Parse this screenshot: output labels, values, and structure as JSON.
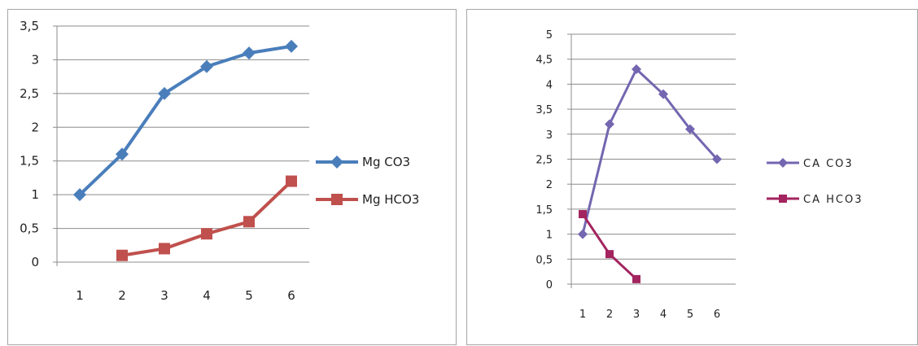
{
  "chart_data": [
    {
      "type": "line",
      "x": [
        "1",
        "2",
        "3",
        "4",
        "5",
        "6"
      ],
      "ylim": [
        0,
        3.5
      ],
      "y_ticks": [
        "0",
        "0,5",
        "1",
        "1,5",
        "2",
        "2,5",
        "3",
        "3,5"
      ],
      "grid": true,
      "legend_position": "right",
      "series": [
        {
          "name": "Mg CO3",
          "color": "#4a7ebb",
          "marker": "diamond",
          "values": [
            1.0,
            1.6,
            2.5,
            2.9,
            3.1,
            3.2
          ]
        },
        {
          "name": "Mg HCO3",
          "color": "#c0504d",
          "marker": "square",
          "values": [
            null,
            0.1,
            0.2,
            0.42,
            0.6,
            1.2
          ]
        }
      ]
    },
    {
      "type": "line",
      "x": [
        "1",
        "2",
        "3",
        "4",
        "5",
        "6"
      ],
      "ylim": [
        0,
        5
      ],
      "y_ticks": [
        "0",
        "0,5",
        "1",
        "1,5",
        "2",
        "2,5",
        "3",
        "3,5",
        "4",
        "4,5",
        "5"
      ],
      "grid": true,
      "legend_position": "right",
      "series": [
        {
          "name": "CA CO3",
          "color": "#7466b0",
          "marker": "diamond",
          "values": [
            1.0,
            3.2,
            4.3,
            3.8,
            3.1,
            2.5
          ]
        },
        {
          "name": "CA HCO3",
          "color": "#a3245f",
          "marker": "square",
          "values": [
            1.4,
            0.6,
            0.1,
            null,
            null,
            null
          ]
        }
      ]
    }
  ]
}
